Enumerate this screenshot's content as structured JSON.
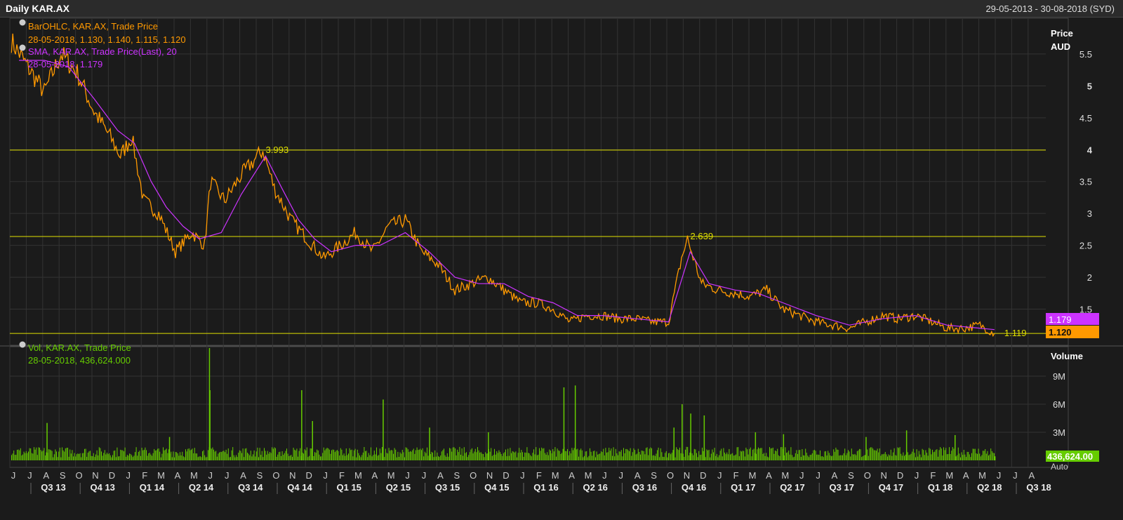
{
  "window": {
    "title": "Daily KAR.AX",
    "date_range": "29-05-2013 - 30-08-2018 (SYD)"
  },
  "price_panel": {
    "legend": [
      {
        "icon": "info-icon",
        "name": "BarOHLC, KAR.AX, Trade Price",
        "values": "28-05-2018, 1.130, 1.140, 1.115, 1.120",
        "color": "#ff9900"
      },
      {
        "icon": "info-icon",
        "name": "SMA, KAR.AX, Trade Price(Last),  20",
        "values": "28-05-2018, 1.179",
        "color": "#cc33ff"
      }
    ],
    "axis_title_1": "Price",
    "axis_title_2": "AUD",
    "last_sma_tag": "1.179",
    "last_price_tag": "1.120",
    "annotations": [
      "3.993",
      "2.639",
      "1.119"
    ]
  },
  "volume_panel": {
    "legend_name": "Vol, KAR.AX, Trade Price",
    "legend_values": "28-05-2018, 436,624.000",
    "axis_title": "Volume",
    "last_volume_tag": "436,624.00",
    "scale_tag": "Auto"
  },
  "colors": {
    "price": "#ff9900",
    "sma": "#cc33ff",
    "volume": "#66cc00",
    "hline": "#e0e000",
    "grid": "#333333",
    "background": "#1b1b1b"
  },
  "chart_data": [
    {
      "type": "line",
      "series": [
        {
          "name": "BarOHLC, KAR.AX, Trade Price",
          "x": [
            "2013-06-01",
            "2013-07-01",
            "2013-08-01",
            "2013-09-01",
            "2013-10-01",
            "2013-11-01",
            "2013-12-01",
            "2013-12-20",
            "2014-01-10",
            "2014-02-01",
            "2014-03-01",
            "2014-04-01",
            "2014-05-01",
            "2014-05-25",
            "2014-06-05",
            "2014-07-01",
            "2014-08-01",
            "2014-09-10",
            "2014-10-01",
            "2014-11-01",
            "2014-12-01",
            "2015-01-01",
            "2015-02-01",
            "2015-03-01",
            "2015-04-01",
            "2015-05-01",
            "2015-06-01",
            "2015-07-01",
            "2015-08-01",
            "2015-09-01",
            "2015-10-01",
            "2015-11-01",
            "2015-12-01",
            "2016-01-01",
            "2016-02-01",
            "2016-03-01",
            "2016-04-01",
            "2016-05-01",
            "2016-06-01",
            "2016-07-01",
            "2016-08-01",
            "2016-09-01",
            "2016-10-01",
            "2016-10-25",
            "2016-11-05",
            "2016-12-01",
            "2017-01-01",
            "2017-02-01",
            "2017-03-01",
            "2017-04-01",
            "2017-05-01",
            "2017-06-01",
            "2017-07-01",
            "2017-08-01",
            "2017-09-01",
            "2017-10-01",
            "2017-11-01",
            "2017-12-01",
            "2018-01-01",
            "2018-02-01",
            "2018-03-01",
            "2018-04-01",
            "2018-05-01",
            "2018-05-28"
          ],
          "y": [
            5.7,
            5.3,
            4.9,
            5.5,
            5.2,
            4.6,
            4.2,
            3.9,
            4.2,
            3.2,
            3.0,
            2.4,
            2.7,
            2.5,
            3.5,
            3.2,
            3.6,
            3.99,
            3.4,
            2.9,
            2.6,
            2.3,
            2.5,
            2.7,
            2.4,
            2.8,
            2.9,
            2.4,
            2.2,
            1.8,
            1.9,
            2.0,
            1.8,
            1.6,
            1.6,
            1.5,
            1.3,
            1.4,
            1.4,
            1.35,
            1.35,
            1.3,
            1.3,
            2.3,
            2.6,
            1.9,
            1.8,
            1.75,
            1.7,
            1.8,
            1.5,
            1.4,
            1.3,
            1.25,
            1.2,
            1.3,
            1.4,
            1.35,
            1.4,
            1.3,
            1.2,
            1.2,
            1.25,
            1.12
          ]
        },
        {
          "name": "SMA, KAR.AX, Trade Price(Last),  20",
          "x": [
            "2013-06-15",
            "2013-08-01",
            "2013-09-15",
            "2013-11-01",
            "2013-12-15",
            "2014-01-15",
            "2014-02-15",
            "2014-03-15",
            "2014-04-15",
            "2014-05-15",
            "2014-06-25",
            "2014-08-01",
            "2014-09-15",
            "2014-10-15",
            "2014-11-15",
            "2014-12-15",
            "2015-01-15",
            "2015-03-01",
            "2015-04-15",
            "2015-06-01",
            "2015-07-15",
            "2015-09-01",
            "2015-10-15",
            "2015-12-01",
            "2016-01-15",
            "2016-03-01",
            "2016-04-15",
            "2016-06-01",
            "2016-08-01",
            "2016-10-01",
            "2016-11-10",
            "2016-12-15",
            "2017-02-01",
            "2017-03-15",
            "2017-05-01",
            "2017-07-01",
            "2017-09-01",
            "2017-11-01",
            "2018-01-01",
            "2018-03-01",
            "2018-05-28"
          ],
          "y": [
            5.4,
            5.4,
            5.3,
            4.8,
            4.3,
            4.1,
            3.5,
            3.1,
            2.8,
            2.6,
            2.7,
            3.3,
            3.9,
            3.4,
            2.9,
            2.6,
            2.4,
            2.5,
            2.5,
            2.7,
            2.4,
            2.0,
            1.9,
            1.9,
            1.7,
            1.6,
            1.4,
            1.4,
            1.35,
            1.3,
            2.4,
            1.9,
            1.8,
            1.75,
            1.6,
            1.4,
            1.25,
            1.35,
            1.4,
            1.25,
            1.179
          ]
        }
      ],
      "y_axis_ticks": [
        "5.5",
        "5",
        "4.5",
        "4",
        "3.5",
        "3",
        "2.5",
        "2",
        "1.5"
      ],
      "ylim": [
        1.0,
        5.95
      ],
      "horizontal_lines": [
        3.993,
        2.639,
        1.119
      ],
      "x_month_ticks": [
        "J",
        "J",
        "A",
        "S",
        "O",
        "N",
        "D",
        "J",
        "F",
        "M",
        "A",
        "M",
        "J",
        "J",
        "A",
        "S",
        "O",
        "N",
        "D",
        "J",
        "F",
        "M",
        "A",
        "M",
        "J",
        "J",
        "A",
        "S",
        "O",
        "N",
        "D",
        "J",
        "F",
        "M",
        "A",
        "M",
        "J",
        "J",
        "A",
        "S",
        "O",
        "N",
        "D",
        "J",
        "F",
        "M",
        "A",
        "M",
        "J",
        "J",
        "A",
        "S",
        "O",
        "N",
        "D",
        "J",
        "F",
        "M",
        "A",
        "M",
        "J",
        "J",
        "A"
      ],
      "x_quarter_ticks": [
        "Q3 13",
        "Q4 13",
        "Q1 14",
        "Q2 14",
        "Q3 14",
        "Q4 14",
        "Q1 15",
        "Q2 15",
        "Q3 15",
        "Q4 15",
        "Q1 16",
        "Q2 16",
        "Q3 16",
        "Q4 16",
        "Q1 17",
        "Q2 17",
        "Q3 17",
        "Q4 17",
        "Q1 18",
        "Q2 18",
        "Q3 18"
      ],
      "grid": true
    },
    {
      "type": "bar",
      "series": [
        {
          "name": "Vol, KAR.AX, Trade Price",
          "x": [
            "2013-08-05",
            "2014-03-20",
            "2014-06-02",
            "2014-06-03",
            "2014-11-20",
            "2014-12-10",
            "2015-04-20",
            "2015-07-15",
            "2015-11-01",
            "2016-03-20",
            "2016-04-10",
            "2016-10-10",
            "2016-10-25",
            "2016-11-10",
            "2016-12-05",
            "2017-03-10",
            "2017-05-01",
            "2017-10-01",
            "2017-12-15",
            "2018-03-15",
            "2018-05-28"
          ],
          "y": [
            4000000,
            2500000,
            12000000,
            7500000,
            7500000,
            4200000,
            6500000,
            3500000,
            3000000,
            7800000,
            8000000,
            3500000,
            6000000,
            5000000,
            4800000,
            3000000,
            2800000,
            2500000,
            3200000,
            2700000,
            436624
          ]
        }
      ],
      "baseline_volume": 800000,
      "y_axis_ticks": [
        "9M",
        "6M",
        "3M"
      ],
      "ylim": [
        0,
        12000000
      ]
    }
  ]
}
